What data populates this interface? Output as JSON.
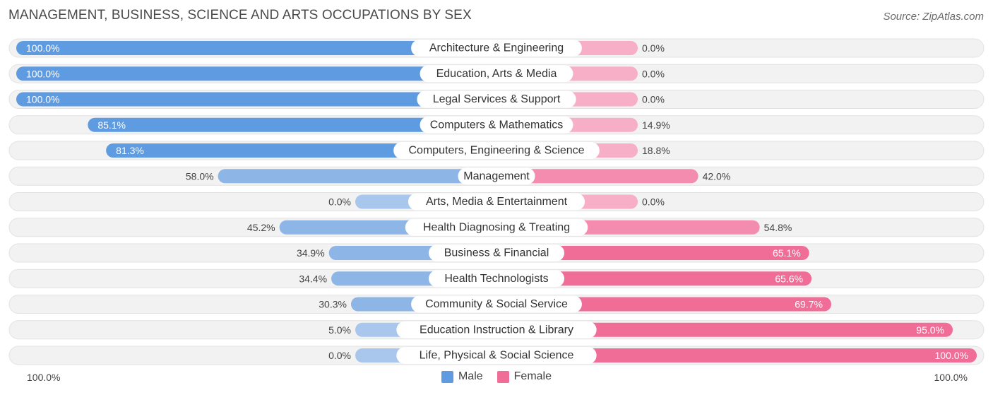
{
  "header": {
    "title": "MANAGEMENT, BUSINESS, SCIENCE AND ARTS OCCUPATIONS BY SEX",
    "source": "Source: ZipAtlas.com"
  },
  "legend": {
    "male_label": "Male",
    "female_label": "Female"
  },
  "axis": {
    "left_label": "100.0%",
    "right_label": "100.0%"
  },
  "colors": {
    "male_strong": "#5e9be0",
    "male_light": "#a9c7ec",
    "female_strong": "#f06d98",
    "female_light": "#f6afc6",
    "track": "#f1f1f1"
  },
  "chart_data": {
    "type": "bar",
    "orientation": "horizontal-diverging",
    "categories": [
      "Architecture & Engineering",
      "Education, Arts & Media",
      "Legal Services & Support",
      "Computers & Mathematics",
      "Computers, Engineering & Science",
      "Management",
      "Arts, Media & Entertainment",
      "Health Diagnosing & Treating",
      "Business & Financial",
      "Health Technologists",
      "Community & Social Service",
      "Education Instruction & Library",
      "Life, Physical & Social Science"
    ],
    "series": [
      {
        "name": "Male",
        "values": [
          100.0,
          100.0,
          100.0,
          85.1,
          81.3,
          58.0,
          0.0,
          45.2,
          34.9,
          34.4,
          30.3,
          5.0,
          0.0
        ]
      },
      {
        "name": "Female",
        "values": [
          0.0,
          0.0,
          0.0,
          14.9,
          18.8,
          42.0,
          0.0,
          54.8,
          65.1,
          65.6,
          69.7,
          95.0,
          100.0
        ]
      }
    ],
    "value_labels": {
      "male": [
        "100.0%",
        "100.0%",
        "100.0%",
        "85.1%",
        "81.3%",
        "58.0%",
        "0.0%",
        "45.2%",
        "34.9%",
        "34.4%",
        "30.3%",
        "5.0%",
        "0.0%"
      ],
      "female": [
        "0.0%",
        "0.0%",
        "0.0%",
        "14.9%",
        "18.8%",
        "42.0%",
        "0.0%",
        "54.8%",
        "65.1%",
        "65.6%",
        "69.7%",
        "95.0%",
        "100.0%"
      ]
    },
    "xlim": [
      0,
      100
    ],
    "legend_position": "bottom-center"
  }
}
